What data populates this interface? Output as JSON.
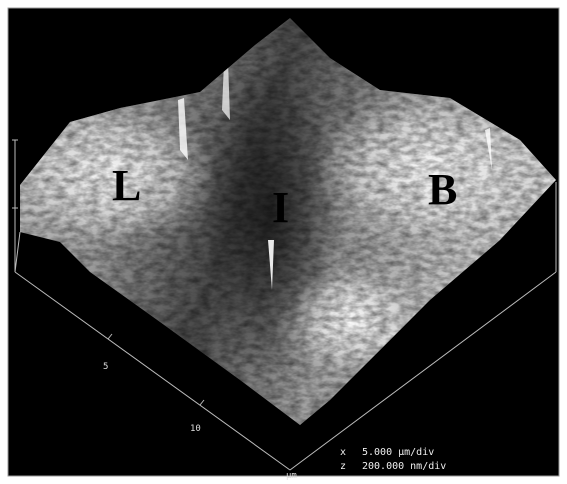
{
  "image": {
    "region_labels": [
      "L",
      "I",
      "B"
    ],
    "axis": {
      "ticks": [
        "5",
        "10"
      ],
      "unit": "µm"
    },
    "scale": [
      {
        "axis": "x",
        "text": "5.000 µm/div"
      },
      {
        "axis": "z",
        "text": "200.000 nm/div"
      }
    ]
  }
}
